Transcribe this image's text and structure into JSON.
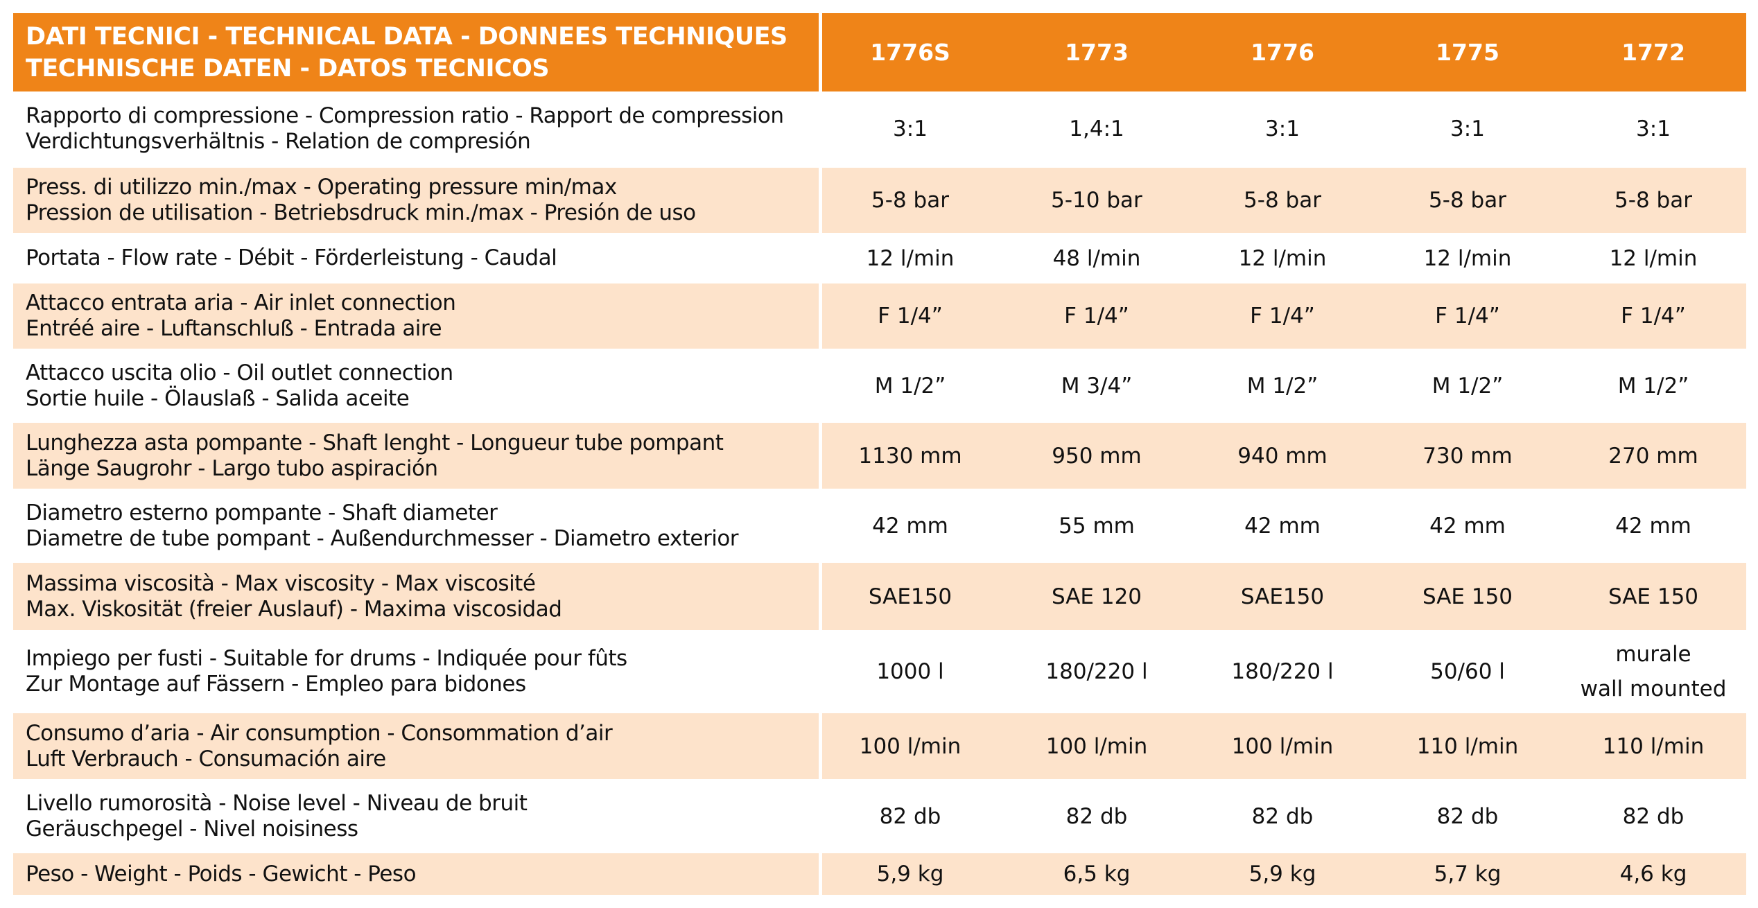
{
  "header": {
    "title": [
      "DATI TECNICI - TECHNICAL DATA - DONNEES TECHNIQUES",
      "TECHNISCHE DATEN - DATOS TECNICOS"
    ],
    "columns": [
      "1776S",
      "1773",
      "1776",
      "1775",
      "1772"
    ]
  },
  "rows": [
    {
      "label": [
        "Rapporto di compressione - Compression ratio - Rapport de compression",
        "Verdichtungsverhältnis - Relation de compresión"
      ],
      "values": [
        "3:1",
        "1,4:1",
        "3:1",
        "3:1",
        "3:1"
      ]
    },
    {
      "label": [
        "Press. di utilizzo min./max - Operating pressure min/max",
        "Pression de utilisation - Betriebsdruck min./max - Presión de uso"
      ],
      "values": [
        "5-8 bar",
        "5-10 bar",
        "5-8 bar",
        "5-8 bar",
        "5-8 bar"
      ]
    },
    {
      "label": [
        "Portata - Flow rate - Débit - Förderleistung - Caudal"
      ],
      "values": [
        "12 l/min",
        "48 l/min",
        "12 l/min",
        "12 l/min",
        "12 l/min"
      ]
    },
    {
      "label": [
        "Attacco entrata aria - Air inlet connection",
        "Entréé aire - Luftanschluß - Entrada aire"
      ],
      "values": [
        "F 1/4”",
        "F 1/4”",
        "F 1/4”",
        "F 1/4”",
        "F 1/4”"
      ]
    },
    {
      "label": [
        "Attacco uscita olio - Oil outlet connection",
        "Sortie huile - Ölauslaß - Salida aceite"
      ],
      "values": [
        "M 1/2”",
        "M 3/4”",
        "M 1/2”",
        "M 1/2”",
        "M 1/2”"
      ]
    },
    {
      "label": [
        "Lunghezza asta pompante - Shaft lenght - Longueur tube pompant",
        "Länge Saugrohr - Largo tubo aspiración"
      ],
      "values": [
        "1130 mm",
        "950 mm",
        "940 mm",
        "730 mm",
        "270 mm"
      ]
    },
    {
      "label": [
        "Diametro esterno pompante - Shaft diameter",
        "Diametre de tube pompant - Außendurchmesser - Diametro exterior"
      ],
      "values": [
        "42 mm",
        "55 mm",
        "42 mm",
        "42 mm",
        "42 mm"
      ]
    },
    {
      "label": [
        "Massima viscosità - Max viscosity - Max viscosité",
        "Max. Viskosität (freier Auslauf) - Maxima viscosidad"
      ],
      "values": [
        "SAE150",
        "SAE 120",
        "SAE150",
        "SAE 150",
        "SAE 150"
      ]
    },
    {
      "label": [
        "Impiego per fusti - Suitable for drums - Indiquée pour fûts",
        "Zur Montage auf Fässern - Empleo para bidones"
      ],
      "values": [
        "1000 l",
        "180/220 l",
        "180/220 l",
        "50/60 l",
        [
          "murale",
          "wall mounted"
        ]
      ]
    },
    {
      "label": [
        "Consumo d’aria - Air consumption - Consommation d’air",
        "Luft Verbrauch - Consumación aire"
      ],
      "values": [
        "100 l/min",
        "100 l/min",
        "100 l/min",
        "110 l/min",
        "110 l/min"
      ]
    },
    {
      "label": [
        "Livello rumorosità - Noise level - Niveau de bruit",
        "Geräuschpegel - Nivel noisiness"
      ],
      "values": [
        "82 db",
        "82 db",
        "82 db",
        "82 db",
        "82 db"
      ]
    },
    {
      "label": [
        "Peso - Weight - Poids - Gewicht - Peso"
      ],
      "values": [
        "5,9 kg",
        "6,5 kg",
        "5,9 kg",
        "5,7 kg",
        "4,6 kg"
      ]
    }
  ]
}
